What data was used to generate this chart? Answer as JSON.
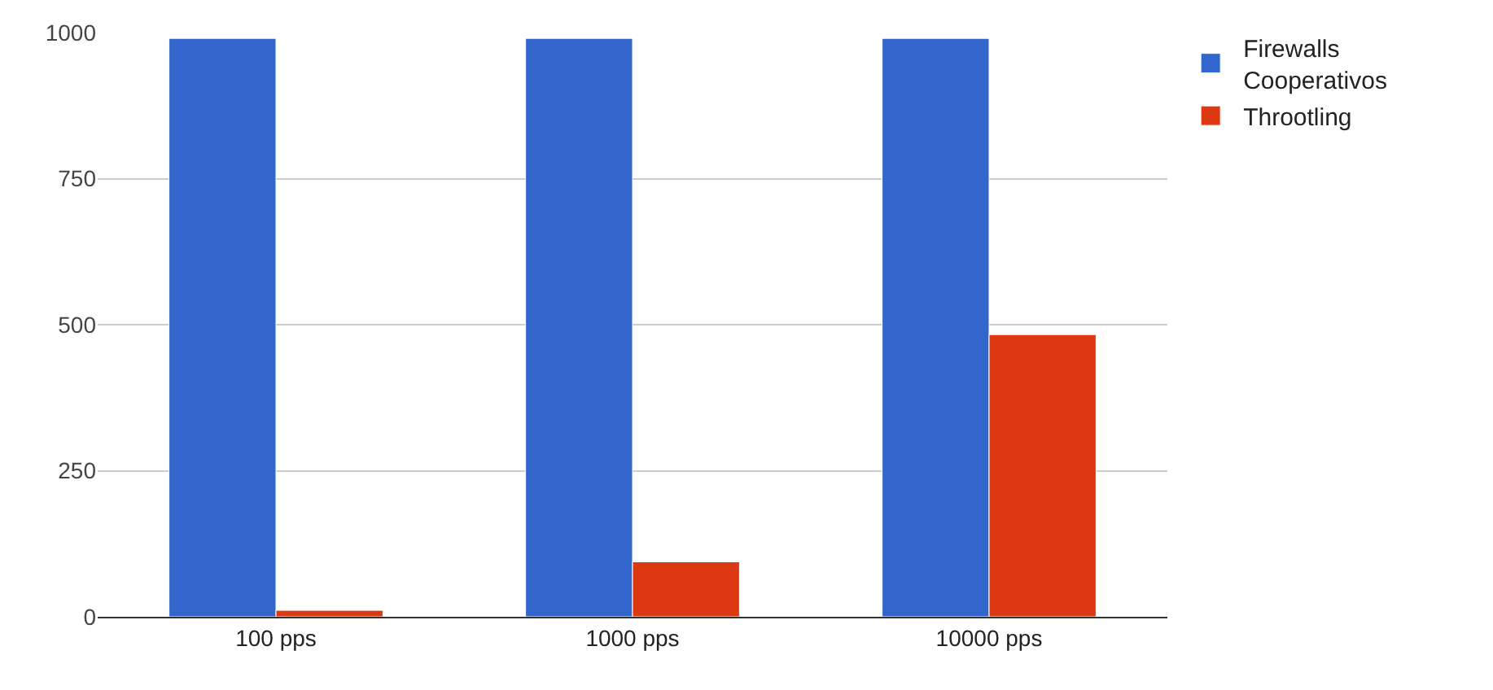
{
  "chart_data": {
    "type": "bar",
    "categories": [
      "100 pps",
      "1000 pps",
      "10000 pps"
    ],
    "series": [
      {
        "name": "Firewalls Cooperativos",
        "color": "#3366cc",
        "values": [
          990,
          990,
          990
        ]
      },
      {
        "name": "Throotling",
        "color": "#dc3912",
        "values": [
          11,
          94,
          483
        ]
      }
    ],
    "ylim": [
      0,
      1000
    ],
    "yticks": [
      0,
      250,
      500,
      750,
      1000
    ],
    "grid": "y",
    "legend": "top right"
  }
}
